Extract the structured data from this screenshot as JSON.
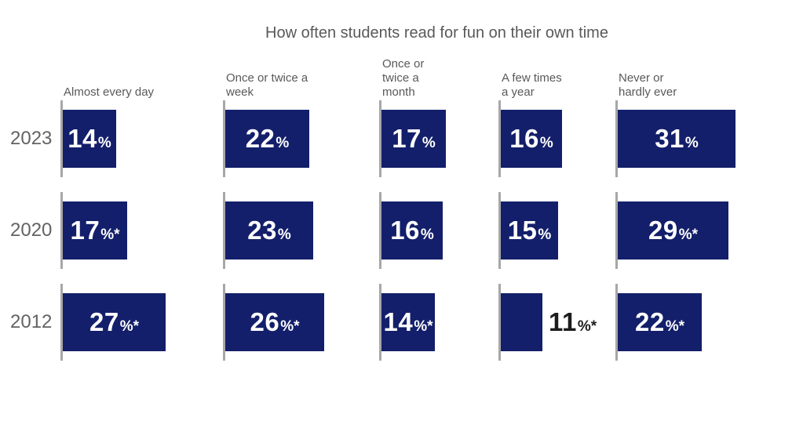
{
  "chart_data": {
    "type": "bar",
    "title": "How often students read for fun on their own time",
    "value_unit": "percent",
    "categories": [
      "Almost every day",
      "Once or twice a week",
      "Once or twice a month",
      "A few times a year",
      "Never or hardly ever"
    ],
    "legend_position": "none",
    "grid": false,
    "xlim": [
      0,
      35
    ],
    "colors": {
      "bar": "#131f6a",
      "label_inside": "#ffffff",
      "label_outside": "#1c1c1c",
      "axis_tick": "#a7a7a7",
      "text": "#595959"
    },
    "series": [
      {
        "name": "2023",
        "values": [
          14,
          22,
          17,
          16,
          31
        ]
      },
      {
        "name": "2020",
        "values": [
          17,
          23,
          16,
          15,
          29
        ]
      },
      {
        "name": "2012",
        "values": [
          27,
          26,
          14,
          11,
          22
        ]
      }
    ],
    "rows": [
      {
        "year": "2023",
        "cells": [
          {
            "value": 14,
            "num": "14",
            "suffix": "%"
          },
          {
            "value": 22,
            "num": "22",
            "suffix": "%"
          },
          {
            "value": 17,
            "num": "17",
            "suffix": "%"
          },
          {
            "value": 16,
            "num": "16",
            "suffix": "%"
          },
          {
            "value": 31,
            "num": "31",
            "suffix": "%"
          }
        ]
      },
      {
        "year": "2020",
        "cells": [
          {
            "value": 17,
            "num": "17",
            "suffix": "%*"
          },
          {
            "value": 23,
            "num": "23",
            "suffix": "%"
          },
          {
            "value": 16,
            "num": "16",
            "suffix": "%"
          },
          {
            "value": 15,
            "num": "15",
            "suffix": "%"
          },
          {
            "value": 29,
            "num": "29",
            "suffix": "%*"
          }
        ]
      },
      {
        "year": "2012",
        "cells": [
          {
            "value": 27,
            "num": "27",
            "suffix": "%*"
          },
          {
            "value": 26,
            "num": "26",
            "suffix": "%*"
          },
          {
            "value": 14,
            "num": "14",
            "suffix": "%*"
          },
          {
            "value": 11,
            "num": "11",
            "suffix": "%*",
            "outside": true
          },
          {
            "value": 22,
            "num": "22",
            "suffix": "%*"
          }
        ]
      }
    ]
  }
}
